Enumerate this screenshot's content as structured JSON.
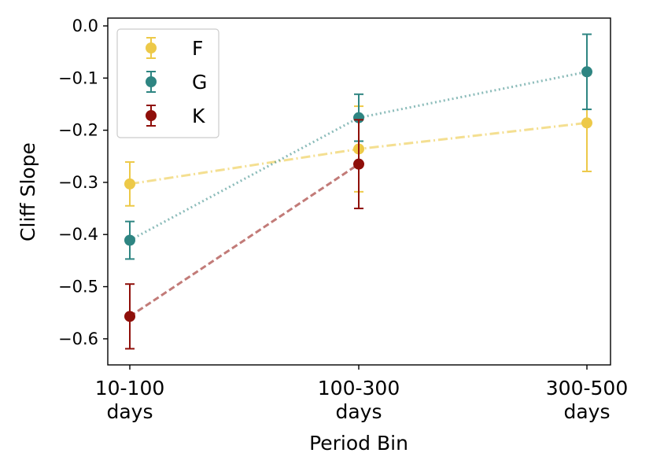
{
  "chart_data": {
    "type": "line",
    "title": "",
    "xlabel": "Period Bin",
    "ylabel": "Cliff Slope",
    "categories": [
      [
        "10-100",
        "days"
      ],
      [
        "100-300",
        "days"
      ],
      [
        "300-500",
        "days"
      ]
    ],
    "ylim": [
      -0.65,
      0.015
    ],
    "yticks": [
      0.0,
      -0.1,
      -0.2,
      -0.3,
      -0.4,
      -0.5,
      -0.6
    ],
    "ytick_labels": [
      "0.0",
      "−0.1",
      "−0.2",
      "−0.3",
      "−0.4",
      "−0.5",
      "−0.6"
    ],
    "grid": false,
    "legend_position": "top-left",
    "series": [
      {
        "name": "F",
        "color": "#edc948",
        "line_style": "dashdot",
        "values": [
          -0.303,
          -0.236,
          -0.186
        ],
        "errors": [
          0.042,
          0.082,
          0.093
        ]
      },
      {
        "name": "G",
        "color": "#2e8582",
        "line_style": "dotted",
        "values": [
          -0.411,
          -0.176,
          -0.088
        ],
        "errors": [
          0.036,
          0.045,
          0.072
        ]
      },
      {
        "name": "K",
        "color": "#8f0f0a",
        "line_style": "dashed",
        "values": [
          -0.557,
          -0.265,
          null
        ],
        "errors": [
          0.062,
          0.085,
          null
        ]
      }
    ]
  }
}
